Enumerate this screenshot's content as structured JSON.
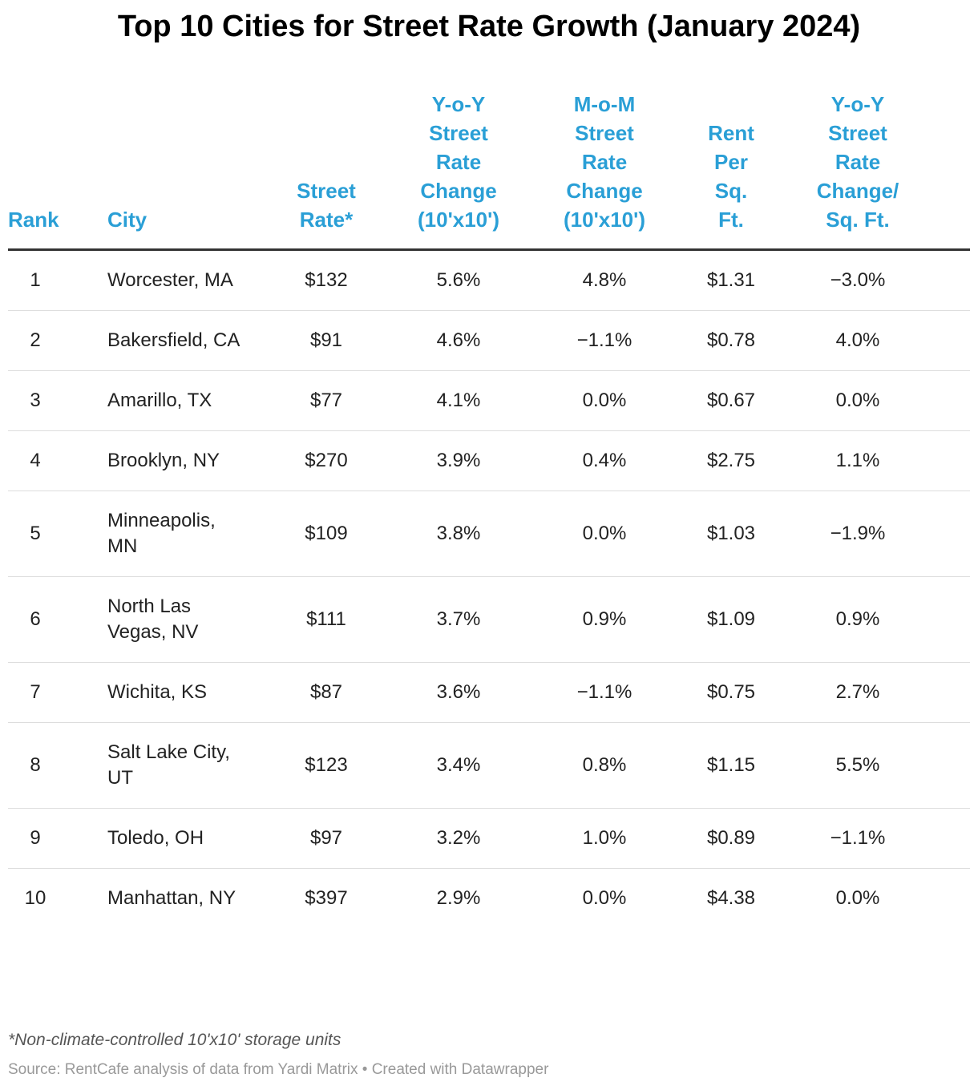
{
  "title": "Top 10 Cities for Street Rate Growth (January 2024)",
  "table": {
    "headers": [
      "Rank",
      "City",
      "Street Rate*",
      "Y-o-Y Street Rate Change (10'x10')",
      "M-o-M Street Rate Change (10'x10')",
      "Rent Per Sq. Ft.",
      "Y-o-Y Street Rate Change/ Sq. Ft."
    ],
    "rows": [
      [
        "1",
        "Worcester, MA",
        "$132",
        "5.6%",
        "4.8%",
        "$1.31",
        "−3.0%"
      ],
      [
        "2",
        "Bakersfield, CA",
        "$91",
        "4.6%",
        "−1.1%",
        "$0.78",
        "4.0%"
      ],
      [
        "3",
        "Amarillo, TX",
        "$77",
        "4.1%",
        "0.0%",
        "$0.67",
        "0.0%"
      ],
      [
        "4",
        "Brooklyn, NY",
        "$270",
        "3.9%",
        "0.4%",
        "$2.75",
        "1.1%"
      ],
      [
        "5",
        "Minneapolis, MN",
        "$109",
        "3.8%",
        "0.0%",
        "$1.03",
        "−1.9%"
      ],
      [
        "6",
        "North Las Vegas, NV",
        "$111",
        "3.7%",
        "0.9%",
        "$1.09",
        "0.9%"
      ],
      [
        "7",
        "Wichita, KS",
        "$87",
        "3.6%",
        "−1.1%",
        "$0.75",
        "2.7%"
      ],
      [
        "8",
        "Salt Lake City, UT",
        "$123",
        "3.4%",
        "0.8%",
        "$1.15",
        "5.5%"
      ],
      [
        "9",
        "Toledo, OH",
        "$97",
        "3.2%",
        "1.0%",
        "$0.89",
        "−1.1%"
      ],
      [
        "10",
        "Manhattan, NY",
        "$397",
        "2.9%",
        "0.0%",
        "$4.38",
        "0.0%"
      ]
    ]
  },
  "footnote": "*Non-climate-controlled 10'x10' storage units",
  "source": "Source: RentCafe analysis of data from Yardi Matrix • Created with Datawrapper"
}
